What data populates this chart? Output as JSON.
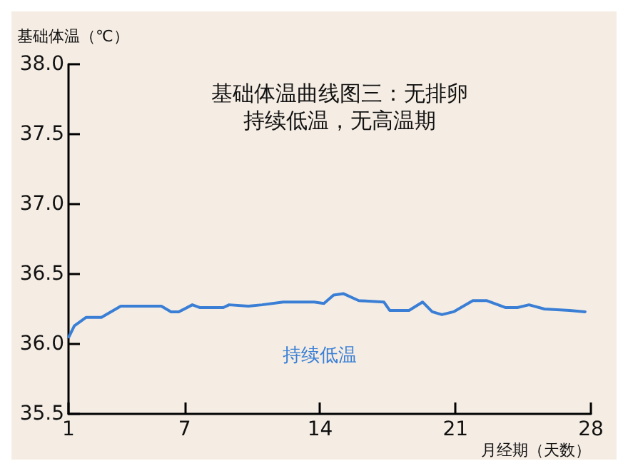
{
  "chart_data": {
    "type": "line",
    "title": "基础体温曲线图三：无排卵",
    "subtitle": "持续低温，无高温期",
    "xlabel": "月经期（天数）",
    "ylabel": "基础体温（℃）",
    "annotations": [
      "持续低温"
    ],
    "series": [
      {
        "color": "#3a7fd5",
        "x": [
          1.02,
          1.3,
          1.9,
          2.7,
          3.7,
          5.8,
          6.3,
          6.7,
          7.4,
          7.8,
          9.0,
          9.3,
          10.3,
          11.0,
          12.1,
          13.7,
          14.2,
          14.7,
          15.2,
          16.0,
          17.3,
          17.6,
          18.6,
          19.3,
          19.8,
          20.3,
          20.9,
          21.9,
          22.6,
          23.6,
          24.2,
          24.8,
          25.6,
          26.9,
          27.7
        ],
        "values": [
          36.05,
          36.13,
          36.19,
          36.19,
          36.27,
          36.27,
          36.23,
          36.23,
          36.28,
          36.26,
          36.26,
          36.28,
          36.27,
          36.28,
          36.3,
          36.3,
          36.29,
          36.35,
          36.36,
          36.31,
          36.3,
          36.24,
          36.24,
          36.3,
          36.23,
          36.21,
          36.23,
          36.31,
          36.31,
          36.26,
          36.26,
          36.28,
          36.25,
          36.24,
          36.23
        ]
      }
    ],
    "xlim": [
      1,
      28
    ],
    "xticks": [
      1,
      7,
      14,
      21,
      28
    ],
    "ylim": [
      35.5,
      38
    ],
    "yticks": [
      35.5,
      {
        "value": 36,
        "label": "36.0"
      },
      36.5,
      {
        "value": 37,
        "label": "37.0"
      },
      37.5,
      {
        "value": 38,
        "label": "38.0"
      }
    ],
    "grid": false,
    "marker": "none",
    "line_style": "solid"
  }
}
